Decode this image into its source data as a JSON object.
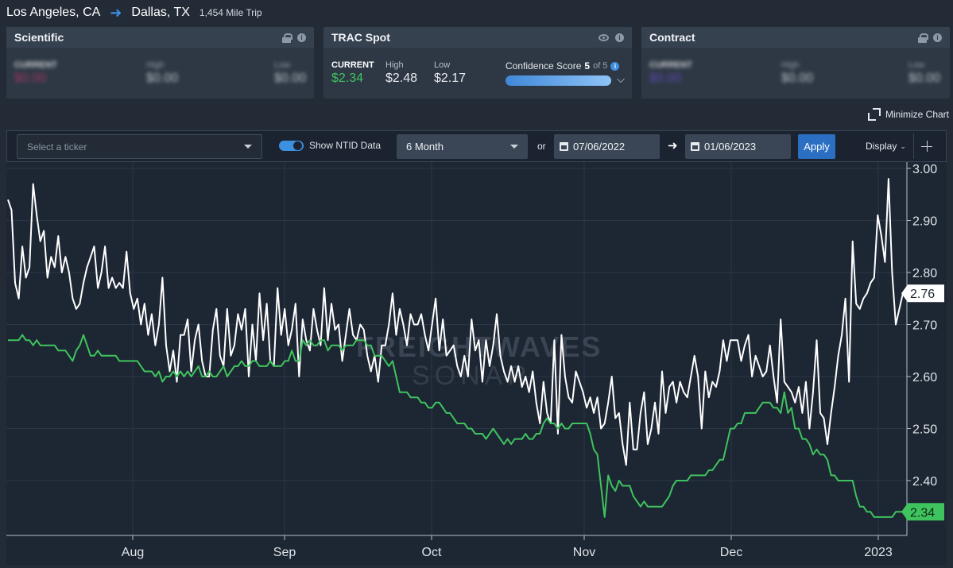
{
  "header": {
    "origin": "Los Angeles, CA",
    "destination": "Dallas, TX",
    "trip": "1,454 Mile Trip"
  },
  "cards": {
    "scientific": {
      "title": "Scientific",
      "current_label": "CURRENT",
      "current": "$0.00",
      "high_label": "High",
      "high": "$0.00",
      "low_label": "Low",
      "low": "$0.00"
    },
    "trac": {
      "title": "TRAC Spot",
      "current_label": "CURRENT",
      "current": "$2.34",
      "high_label": "High",
      "high": "$2.48",
      "low_label": "Low",
      "low": "$2.17",
      "confidence_label": "Confidence Score",
      "confidence_value": "5",
      "confidence_of": "of 5",
      "confidence_fraction": 1.0
    },
    "contract": {
      "title": "Contract",
      "current_label": "CURRENT",
      "current": "$0.00",
      "high_label": "High",
      "high": "$0.00",
      "low_label": "Low",
      "low": "$0.00"
    }
  },
  "minimize_label": "Minimize Chart",
  "toolbar": {
    "ticker_placeholder": "Select a ticker",
    "ntid_label": "Show NTID Data",
    "ntid_on": true,
    "period": "6 Month",
    "or_label": "or",
    "start_date": "07/06/2022",
    "end_date": "01/06/2023",
    "apply_label": "Apply",
    "display_label": "Display"
  },
  "colors": {
    "accent": "#3d8fe0",
    "green": "#3fc35e",
    "white": "#ffffff",
    "bg": "#232b36"
  },
  "chart_data": {
    "type": "line",
    "x_ticks": [
      "Aug",
      "Sep",
      "Oct",
      "Nov",
      "Dec",
      "2023"
    ],
    "y_ticks": [
      "3.00",
      "2.90",
      "2.80",
      "2.70",
      "2.60",
      "2.50",
      "2.40"
    ],
    "ylim": [
      2.3,
      3.0
    ],
    "series": [
      {
        "values": [
          2.94,
          2.92,
          2.78,
          2.75,
          2.85,
          2.79,
          2.81,
          2.97,
          2.91,
          2.86,
          2.88,
          2.79,
          2.83,
          2.81,
          2.87,
          2.8,
          2.83,
          2.8,
          2.75,
          2.73,
          2.74,
          2.78,
          2.81,
          2.83,
          2.85,
          2.77,
          2.8,
          2.85,
          2.77,
          2.79,
          2.77,
          2.78,
          2.77,
          2.84,
          2.76,
          2.73,
          2.75,
          2.7,
          2.74,
          2.68,
          2.72,
          2.66,
          2.7,
          2.79,
          2.66,
          2.61,
          2.65,
          2.59,
          2.68,
          2.68,
          2.71,
          2.61,
          2.67,
          2.7,
          2.63,
          2.6,
          2.6,
          2.69,
          2.73,
          2.64,
          2.62,
          2.73,
          2.64,
          2.66,
          2.72,
          2.69,
          2.73,
          2.6,
          2.7,
          2.63,
          2.76,
          2.67,
          2.74,
          2.63,
          2.62,
          2.77,
          2.68,
          2.73,
          2.66,
          2.69,
          2.74,
          2.6,
          2.71,
          2.67,
          2.65,
          2.73,
          2.69,
          2.66,
          2.77,
          2.67,
          2.74,
          2.69,
          2.7,
          2.63,
          2.68,
          2.73,
          2.68,
          2.67,
          2.7,
          2.69,
          2.64,
          2.61,
          2.64,
          2.59,
          2.66,
          2.66,
          2.7,
          2.76,
          2.68,
          2.73,
          2.7,
          2.66,
          2.72,
          2.7,
          2.7,
          2.72,
          2.68,
          2.65,
          2.7,
          2.75,
          2.65,
          2.71,
          2.64,
          2.65,
          2.66,
          2.62,
          2.6,
          2.64,
          2.6,
          2.71,
          2.65,
          2.67,
          2.59,
          2.67,
          2.62,
          2.66,
          2.72,
          2.64,
          2.61,
          2.59,
          2.62,
          2.59,
          2.62,
          2.58,
          2.6,
          2.57,
          2.61,
          2.55,
          2.51,
          2.59,
          2.53,
          2.51,
          2.67,
          2.49,
          2.68,
          2.6,
          2.56,
          2.55,
          2.61,
          2.59,
          2.57,
          2.54,
          2.56,
          2.53,
          2.56,
          2.5,
          2.51,
          2.55,
          2.6,
          2.52,
          2.53,
          2.47,
          2.43,
          2.55,
          2.46,
          2.46,
          2.53,
          2.57,
          2.47,
          2.5,
          2.55,
          2.49,
          2.61,
          2.53,
          2.58,
          2.59,
          2.55,
          2.59,
          2.57,
          2.56,
          2.6,
          2.64,
          2.6,
          2.5,
          2.61,
          2.56,
          2.59,
          2.58,
          2.61,
          2.67,
          2.63,
          2.67,
          2.67,
          2.67,
          2.63,
          2.66,
          2.68,
          2.6,
          2.64,
          2.62,
          2.6,
          2.61,
          2.66,
          2.6,
          2.55,
          2.71,
          2.59,
          2.58,
          2.57,
          2.55,
          2.58,
          2.53,
          2.59,
          2.5,
          2.57,
          2.67,
          2.53,
          2.52,
          2.47,
          2.53,
          2.58,
          2.64,
          2.68,
          2.75,
          2.59,
          2.86,
          2.74,
          2.73,
          2.75,
          2.76,
          2.78,
          2.79,
          2.91,
          2.87,
          2.82,
          2.98,
          2.8,
          2.7,
          2.73,
          2.76
        ],
        "color": "#ffffff"
      },
      {
        "values": [
          2.67,
          2.67,
          2.67,
          2.67,
          2.68,
          2.67,
          2.67,
          2.66,
          2.67,
          2.66,
          2.66,
          2.66,
          2.66,
          2.66,
          2.65,
          2.65,
          2.65,
          2.64,
          2.63,
          2.65,
          2.66,
          2.68,
          2.66,
          2.64,
          2.64,
          2.65,
          2.64,
          2.64,
          2.64,
          2.64,
          2.64,
          2.63,
          2.63,
          2.63,
          2.63,
          2.63,
          2.63,
          2.62,
          2.61,
          2.61,
          2.61,
          2.6,
          2.61,
          2.59,
          2.6,
          2.6,
          2.61,
          2.6,
          2.61,
          2.6,
          2.61,
          2.6,
          2.61,
          2.62,
          2.6,
          2.6,
          2.61,
          2.6,
          2.6,
          2.61,
          2.62,
          2.6,
          2.61,
          2.62,
          2.62,
          2.63,
          2.62,
          2.62,
          2.63,
          2.63,
          2.62,
          2.62,
          2.62,
          2.63,
          2.62,
          2.62,
          2.62,
          2.63,
          2.63,
          2.65,
          2.63,
          2.63,
          2.67,
          2.66,
          2.67,
          2.66,
          2.66,
          2.67,
          2.67,
          2.65,
          2.66,
          2.66,
          2.66,
          2.65,
          2.66,
          2.66,
          2.66,
          2.67,
          2.67,
          2.67,
          2.66,
          2.66,
          2.64,
          2.64,
          2.64,
          2.63,
          2.62,
          2.63,
          2.6,
          2.57,
          2.57,
          2.57,
          2.56,
          2.56,
          2.56,
          2.55,
          2.55,
          2.54,
          2.54,
          2.55,
          2.55,
          2.54,
          2.53,
          2.53,
          2.52,
          2.51,
          2.51,
          2.51,
          2.5,
          2.5,
          2.49,
          2.49,
          2.49,
          2.48,
          2.49,
          2.5,
          2.49,
          2.48,
          2.47,
          2.48,
          2.47,
          2.48,
          2.48,
          2.48,
          2.49,
          2.48,
          2.48,
          2.49,
          2.49,
          2.51,
          2.52,
          2.51,
          2.51,
          2.5,
          2.51,
          2.5,
          2.5,
          2.51,
          2.51,
          2.51,
          2.51,
          2.51,
          2.49,
          2.46,
          2.45,
          2.39,
          2.33,
          2.41,
          2.39,
          2.38,
          2.4,
          2.39,
          2.39,
          2.39,
          2.37,
          2.36,
          2.35,
          2.36,
          2.35,
          2.35,
          2.35,
          2.35,
          2.35,
          2.36,
          2.37,
          2.39,
          2.4,
          2.4,
          2.4,
          2.4,
          2.41,
          2.41,
          2.41,
          2.41,
          2.41,
          2.42,
          2.42,
          2.43,
          2.44,
          2.44,
          2.47,
          2.5,
          2.5,
          2.51,
          2.51,
          2.53,
          2.53,
          2.53,
          2.53,
          2.54,
          2.55,
          2.55,
          2.55,
          2.54,
          2.54,
          2.53,
          2.57,
          2.53,
          2.54,
          2.5,
          2.5,
          2.48,
          2.48,
          2.47,
          2.45,
          2.46,
          2.45,
          2.45,
          2.44,
          2.41,
          2.41,
          2.4,
          2.4,
          2.4,
          2.4,
          2.4,
          2.37,
          2.35,
          2.35,
          2.34,
          2.34,
          2.33,
          2.33,
          2.33,
          2.33,
          2.33,
          2.33,
          2.34,
          2.34,
          2.34
        ],
        "color": "#3fc35e"
      }
    ],
    "last_labels": [
      "2.76",
      "2.34"
    ],
    "grid": true,
    "watermark_line1": "FREIGHTWAVES",
    "watermark_line2": "SONAR"
  }
}
